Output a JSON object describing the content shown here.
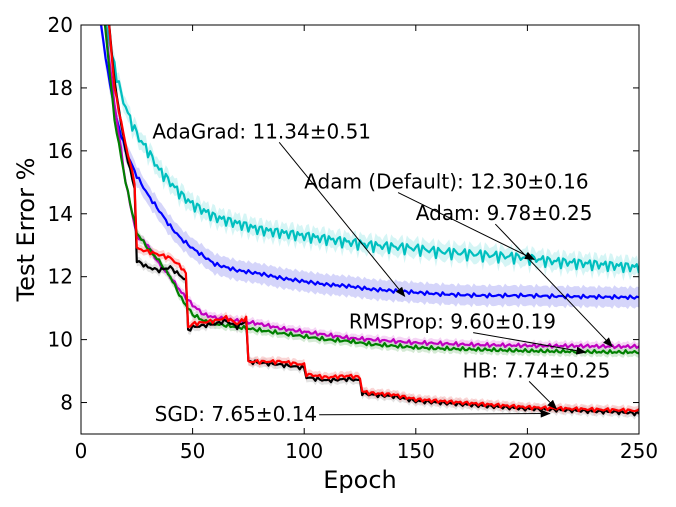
{
  "chart_data": {
    "type": "line",
    "xlabel": "Epoch",
    "ylabel": "Test Error %",
    "xlim": [
      0,
      250
    ],
    "ylim": [
      7,
      20
    ],
    "xticks": [
      0,
      50,
      100,
      150,
      200,
      250
    ],
    "yticks": [
      8,
      10,
      12,
      14,
      16,
      18,
      20
    ],
    "grid": false,
    "series": [
      {
        "key": "adagrad",
        "color": "#0000ff",
        "band": "#b3b3f5",
        "x": [
          8,
          12,
          16,
          20,
          25,
          30,
          35,
          40,
          45,
          50,
          60,
          70,
          80,
          90,
          100,
          110,
          120,
          130,
          140,
          150,
          160,
          170,
          180,
          190,
          200,
          210,
          220,
          230,
          240,
          250
        ],
        "y": [
          20.5,
          18.5,
          17.0,
          16.0,
          15.2,
          14.6,
          14.1,
          13.6,
          13.2,
          12.9,
          12.4,
          12.2,
          12.1,
          11.95,
          11.85,
          11.75,
          11.7,
          11.6,
          11.55,
          11.5,
          11.45,
          11.42,
          11.4,
          11.4,
          11.4,
          11.38,
          11.37,
          11.36,
          11.35,
          11.34
        ]
      },
      {
        "key": "adam_default",
        "color": "#00bfbf",
        "band": "#b3ecec",
        "x": [
          10,
          14,
          18,
          22,
          26,
          30,
          35,
          40,
          45,
          50,
          60,
          70,
          80,
          90,
          100,
          110,
          120,
          130,
          140,
          150,
          160,
          170,
          180,
          190,
          200,
          210,
          220,
          230,
          240,
          250
        ],
        "y": [
          20.5,
          19.0,
          17.8,
          17.0,
          16.4,
          16.0,
          15.4,
          15.0,
          14.6,
          14.3,
          13.9,
          13.7,
          13.5,
          13.4,
          13.3,
          13.2,
          13.1,
          13.0,
          12.95,
          12.9,
          12.8,
          12.75,
          12.7,
          12.65,
          12.6,
          12.5,
          12.45,
          12.4,
          12.35,
          12.3
        ]
      },
      {
        "key": "adam",
        "color": "#bf00bf",
        "band": "#ecb3ec",
        "x": [
          10,
          15,
          20,
          25,
          30,
          35,
          40,
          45,
          50,
          55,
          60,
          70,
          80,
          90,
          100,
          110,
          120,
          130,
          140,
          150,
          160,
          170,
          180,
          190,
          200,
          210,
          220,
          230,
          240,
          250
        ],
        "y": [
          20.5,
          17.5,
          15.0,
          13.3,
          13.0,
          12.4,
          12.0,
          11.5,
          11.1,
          10.8,
          10.7,
          10.6,
          10.5,
          10.35,
          10.25,
          10.15,
          10.05,
          10.0,
          9.95,
          9.9,
          9.88,
          9.85,
          9.83,
          9.82,
          9.81,
          9.8,
          9.8,
          9.79,
          9.78,
          9.78
        ]
      },
      {
        "key": "rmsprop",
        "color": "#008000",
        "band": "#b3d9b3",
        "x": [
          10,
          15,
          20,
          25,
          30,
          35,
          40,
          45,
          50,
          55,
          60,
          70,
          80,
          90,
          100,
          110,
          120,
          130,
          140,
          150,
          160,
          170,
          180,
          190,
          200,
          210,
          220,
          230,
          240,
          250
        ],
        "y": [
          20.5,
          17.0,
          15.0,
          13.4,
          12.9,
          12.5,
          12.0,
          11.3,
          10.8,
          10.6,
          10.5,
          10.4,
          10.3,
          10.2,
          10.1,
          10.0,
          9.95,
          9.85,
          9.8,
          9.75,
          9.72,
          9.7,
          9.68,
          9.66,
          9.64,
          9.63,
          9.62,
          9.61,
          9.6,
          9.6
        ]
      },
      {
        "key": "sgd",
        "color": "#000000",
        "band": "#cccccc",
        "x": [
          12,
          15,
          20,
          24,
          25,
          30,
          35,
          40,
          45,
          47,
          48,
          50,
          60,
          65,
          70,
          74,
          75,
          90,
          100,
          101,
          110,
          120,
          125,
          126,
          130,
          140,
          150,
          160,
          170,
          180,
          190,
          200,
          210,
          220,
          230,
          240,
          250
        ],
        "y": [
          20.5,
          18.2,
          16.0,
          14.8,
          12.5,
          12.3,
          12.2,
          12.3,
          12.0,
          11.9,
          10.3,
          10.4,
          10.5,
          10.6,
          10.4,
          10.6,
          9.3,
          9.2,
          9.1,
          8.8,
          8.7,
          8.75,
          8.7,
          8.3,
          8.25,
          8.2,
          8.05,
          8.0,
          7.95,
          7.9,
          7.85,
          7.8,
          7.78,
          7.75,
          7.72,
          7.7,
          7.65
        ]
      },
      {
        "key": "hb",
        "color": "#ff0000",
        "band": "#f5b3b3",
        "x": [
          12,
          15,
          20,
          24,
          25,
          30,
          35,
          40,
          45,
          47,
          48,
          50,
          60,
          65,
          70,
          74,
          75,
          90,
          100,
          101,
          110,
          120,
          125,
          126,
          130,
          140,
          150,
          160,
          170,
          180,
          190,
          200,
          210,
          220,
          230,
          240,
          250
        ],
        "y": [
          20.5,
          18.0,
          16.2,
          15.0,
          12.9,
          12.8,
          12.7,
          12.6,
          12.3,
          12.1,
          10.4,
          10.5,
          10.6,
          10.7,
          10.5,
          10.7,
          9.3,
          9.3,
          9.2,
          8.9,
          8.8,
          8.85,
          8.8,
          8.35,
          8.3,
          8.25,
          8.1,
          8.05,
          8.0,
          7.95,
          7.9,
          7.85,
          7.82,
          7.8,
          7.78,
          7.76,
          7.74
        ]
      }
    ],
    "annotations": [
      {
        "text": "AdaGrad: 11.34±0.51",
        "text_xy": [
          32,
          16.4
        ],
        "arrow_xy": [
          145,
          11.38
        ]
      },
      {
        "text": "Adam (Default): 12.30±0.16",
        "text_xy": [
          100,
          14.8
        ],
        "arrow_xy": [
          203,
          12.55
        ]
      },
      {
        "text": "Adam: 9.78±0.25",
        "text_xy": [
          150,
          13.8
        ],
        "arrow_xy": [
          238,
          9.78
        ]
      },
      {
        "text": "RMSProp: 9.60±0.19",
        "text_xy": [
          120,
          10.35
        ],
        "arrow_xy": [
          226,
          9.6
        ]
      },
      {
        "text": "HB: 7.74±0.25",
        "text_xy": [
          171,
          8.8
        ],
        "arrow_xy": [
          213,
          7.8
        ]
      },
      {
        "text": "SGD: 7.65±0.14",
        "text_xy": [
          33,
          7.42
        ],
        "arrow_xy": [
          210,
          7.65
        ]
      }
    ]
  }
}
